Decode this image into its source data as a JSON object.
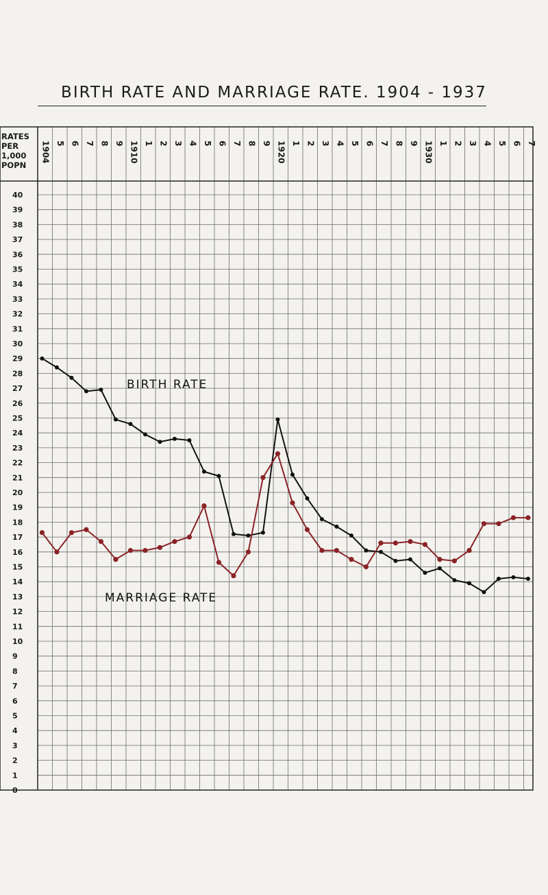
{
  "page": {
    "title": "BIRTH RATE AND MARRIAGE RATE.   1904 - 1937"
  },
  "y_axis_header": [
    "RATES",
    "PER",
    "1,000",
    "POPN"
  ],
  "x_tick_labels": [
    "1904",
    "5",
    "6",
    "7",
    "8",
    "9",
    "1910",
    "1",
    "2",
    "3",
    "4",
    "5",
    "6",
    "7",
    "8",
    "9",
    "1920",
    "1",
    "2",
    "3",
    "4",
    "5",
    "6",
    "7",
    "8",
    "9",
    "1930",
    "1",
    "2",
    "3",
    "4",
    "5",
    "6",
    "7"
  ],
  "y_tick_labels": [
    "40",
    "39",
    "38",
    "37",
    "36",
    "35",
    "34",
    "33",
    "32",
    "31",
    "30",
    "29",
    "28",
    "27",
    "26",
    "25",
    "24",
    "23",
    "22",
    "21",
    "20",
    "19",
    "18",
    "17",
    "16",
    "15",
    "14",
    "13",
    "12",
    "11",
    "10",
    "9",
    "8",
    "7",
    "6",
    "5",
    "4",
    "3",
    "2",
    "1",
    "0"
  ],
  "chart_data": {
    "type": "line",
    "title": "BIRTH RATE AND MARRIAGE RATE.   1904 - 1937",
    "ylabel": "RATES PER 1,000 POPN",
    "xlabel": "",
    "x": [
      1904,
      1905,
      1906,
      1907,
      1908,
      1909,
      1910,
      1911,
      1912,
      1913,
      1914,
      1915,
      1916,
      1917,
      1918,
      1919,
      1920,
      1921,
      1922,
      1923,
      1924,
      1925,
      1926,
      1927,
      1928,
      1929,
      1930,
      1931,
      1932,
      1933,
      1934,
      1935,
      1936,
      1937
    ],
    "ylim": [
      0,
      40
    ],
    "grid": true,
    "series": [
      {
        "name": "BIRTH RATE",
        "color": "#111111",
        "values": [
          29.0,
          28.4,
          27.7,
          26.8,
          26.9,
          24.9,
          24.6,
          23.9,
          23.4,
          23.6,
          23.5,
          21.4,
          21.1,
          17.2,
          17.1,
          17.3,
          24.9,
          21.2,
          19.6,
          18.2,
          17.7,
          17.1,
          16.1,
          16.0,
          15.4,
          15.5,
          14.6,
          14.9,
          14.1,
          13.9,
          13.3,
          14.2,
          14.3,
          14.2
        ]
      },
      {
        "name": "MARRIAGE RATE",
        "color": "#8b2226",
        "values": [
          17.3,
          16.0,
          17.3,
          17.5,
          16.7,
          15.5,
          16.1,
          16.1,
          16.3,
          16.7,
          17.0,
          19.1,
          15.3,
          14.4,
          16.0,
          21.0,
          22.6,
          19.3,
          17.5,
          16.1,
          16.1,
          15.5,
          15.0,
          16.6,
          16.6,
          16.7,
          16.5,
          15.5,
          15.4,
          16.1,
          17.9,
          17.9,
          18.3,
          18.3
        ]
      }
    ],
    "annotations": [
      "BIRTH RATE",
      "MARRIAGE RATE"
    ]
  }
}
